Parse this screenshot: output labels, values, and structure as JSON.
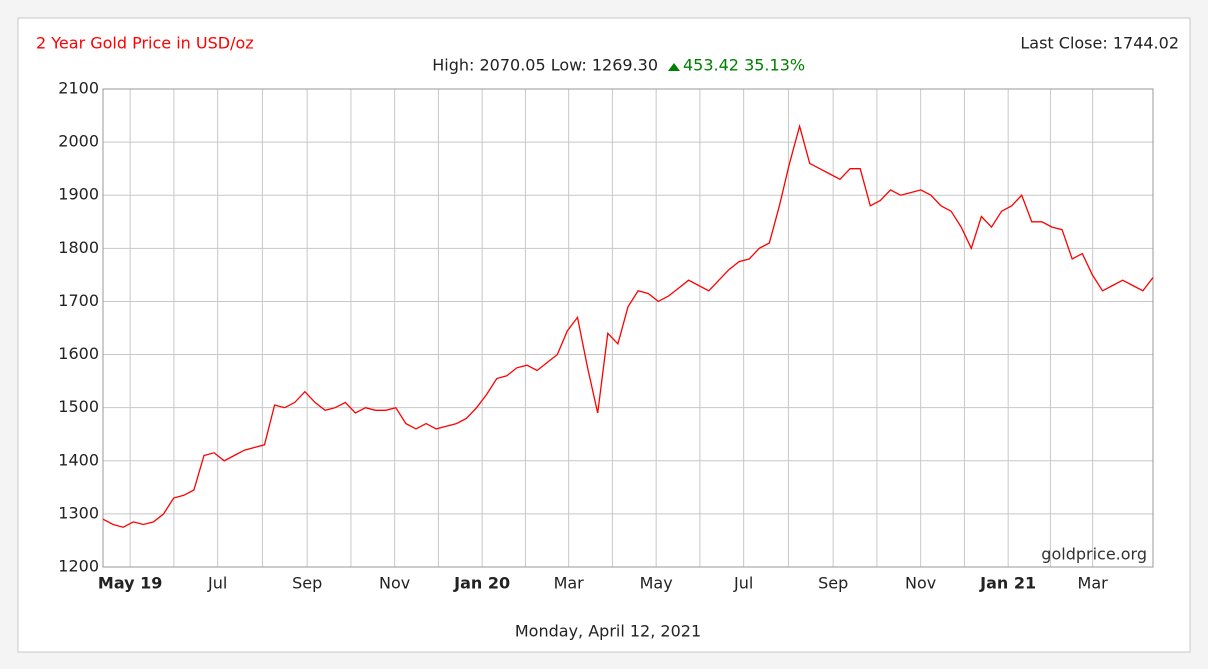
{
  "chart_data": {
    "type": "line",
    "title": "2 Year Gold Price in USD/oz",
    "last_close": "Last Close: 1744.02",
    "high_low": "High: 2070.05 Low: 1269.30",
    "change": "453.42 35.13%",
    "watermark": "goldprice.org",
    "footer": "Monday, April 12, 2021",
    "color": "#ff0000",
    "grid": true,
    "xlim": [
      0,
      104.4
    ],
    "ylim": [
      1200,
      2100
    ],
    "yticks": [
      1200,
      1300,
      1400,
      1500,
      1600,
      1700,
      1800,
      1900,
      2000,
      2100
    ],
    "xticks": [
      {
        "value": 2.7,
        "label": "May 19"
      },
      {
        "value": 11.4,
        "label": "Jul"
      },
      {
        "value": 20.3,
        "label": "Sep"
      },
      {
        "value": 29,
        "label": "Nov"
      },
      {
        "value": 37.7,
        "label": "Jan 20"
      },
      {
        "value": 46.3,
        "label": "Mar"
      },
      {
        "value": 55,
        "label": "May"
      },
      {
        "value": 63.7,
        "label": "Jul"
      },
      {
        "value": 72.6,
        "label": "Sep"
      },
      {
        "value": 81.3,
        "label": "Nov"
      },
      {
        "value": 90,
        "label": "Jan 21"
      },
      {
        "value": 98.4,
        "label": "Mar"
      }
    ],
    "values": [
      1290,
      1280,
      1275,
      1285,
      1280,
      1285,
      1300,
      1330,
      1335,
      1345,
      1410,
      1415,
      1400,
      1410,
      1420,
      1425,
      1430,
      1505,
      1500,
      1510,
      1530,
      1510,
      1495,
      1500,
      1510,
      1490,
      1500,
      1495,
      1495,
      1500,
      1470,
      1460,
      1470,
      1460,
      1465,
      1470,
      1480,
      1500,
      1525,
      1555,
      1560,
      1575,
      1580,
      1570,
      1585,
      1600,
      1645,
      1670,
      1575,
      1490,
      1640,
      1620,
      1690,
      1720,
      1715,
      1700,
      1710,
      1725,
      1740,
      1730,
      1720,
      1740,
      1760,
      1775,
      1780,
      1800,
      1810,
      1880,
      1960,
      2030,
      1960,
      1950,
      1940,
      1930,
      1950,
      1950,
      1880,
      1890,
      1910,
      1900,
      1905,
      1910,
      1900,
      1880,
      1870,
      1840,
      1800,
      1860,
      1840,
      1870,
      1880,
      1900,
      1850,
      1850,
      1840,
      1835,
      1780,
      1790,
      1750,
      1720,
      1730,
      1740,
      1730,
      1720,
      1745
    ]
  }
}
